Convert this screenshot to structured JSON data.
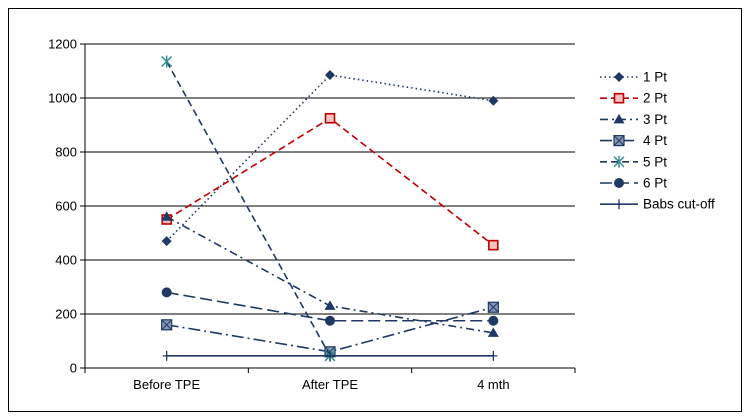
{
  "chart_data": {
    "type": "line",
    "categories": [
      "Before TPE",
      "After TPE",
      "4 mth"
    ],
    "ylim": [
      0,
      1200
    ],
    "yticks": [
      0,
      200,
      400,
      600,
      800,
      1000,
      1200
    ],
    "grid": true,
    "legend_position": "right",
    "series": [
      {
        "name": "1 Pt",
        "values": [
          470,
          1085,
          990
        ],
        "color": "#1f3864",
        "dash": "dotted",
        "marker": "diamond"
      },
      {
        "name": "2 Pt",
        "values": [
          550,
          925,
          455
        ],
        "color": "#c00000",
        "dash": "dashed",
        "marker": "square-outline"
      },
      {
        "name": "3 Pt",
        "values": [
          560,
          230,
          130
        ],
        "color": "#1f3864",
        "dash": "dash-dot",
        "marker": "triangle"
      },
      {
        "name": "4 Pt",
        "values": [
          160,
          60,
          225
        ],
        "color": "#1f3864",
        "dash": "long-dash-dot",
        "marker": "square-x"
      },
      {
        "name": "5 Pt",
        "values": [
          1135,
          45,
          null
        ],
        "color": "#1f3864",
        "dash": "dashed",
        "marker": "star"
      },
      {
        "name": "6 Pt",
        "values": [
          280,
          175,
          175
        ],
        "color": "#1f3864",
        "dash": "long-dash",
        "marker": "circle"
      },
      {
        "name": "Babs cut-off",
        "values": [
          45,
          45,
          45
        ],
        "color": "#1f3864",
        "dash": "solid",
        "marker": "plus"
      }
    ]
  }
}
